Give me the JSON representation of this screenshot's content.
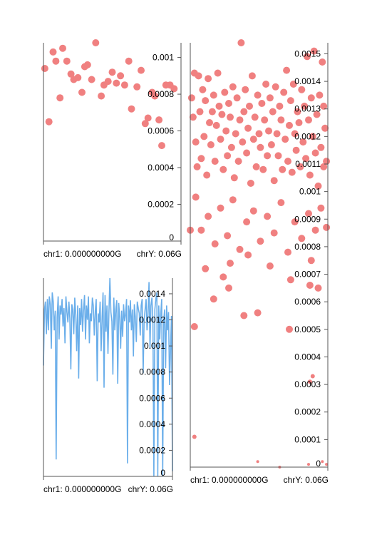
{
  "colors": {
    "points": "#f08080",
    "line": "#6aaeea",
    "axis": "#555555"
  },
  "chart_data": [
    {
      "type": "scatter",
      "xlabel_left": "chr1: 0.000000000G",
      "xlabel_right": "chrY: 0.06G",
      "xlim": [
        0,
        1
      ],
      "ylim": [
        0,
        0.00108
      ],
      "yticks": [
        0,
        0.0002,
        0.0004,
        0.0006,
        0.0008,
        0.001
      ],
      "ytick_labels": [
        "0",
        "0.0002",
        "0.0004",
        "0.0006",
        "0.0008",
        "0.001"
      ],
      "grid": false,
      "points": [
        [
          0.01,
          0.00094
        ],
        [
          0.04,
          0.00065
        ],
        [
          0.07,
          0.00103
        ],
        [
          0.09,
          0.00098
        ],
        [
          0.12,
          0.00078
        ],
        [
          0.14,
          0.00105
        ],
        [
          0.17,
          0.00098
        ],
        [
          0.2,
          0.00091
        ],
        [
          0.22,
          0.00088
        ],
        [
          0.25,
          0.00089
        ],
        [
          0.28,
          0.00081
        ],
        [
          0.3,
          0.00095
        ],
        [
          0.32,
          0.00096
        ],
        [
          0.35,
          0.00088
        ],
        [
          0.38,
          0.00108
        ],
        [
          0.42,
          0.00079
        ],
        [
          0.44,
          0.00085
        ],
        [
          0.47,
          0.00087
        ],
        [
          0.5,
          0.00092
        ],
        [
          0.53,
          0.00086
        ],
        [
          0.56,
          0.0009
        ],
        [
          0.59,
          0.00085
        ],
        [
          0.62,
          0.00098
        ],
        [
          0.64,
          0.00072
        ],
        [
          0.68,
          0.00084
        ],
        [
          0.71,
          0.00093
        ],
        [
          0.74,
          0.00064
        ],
        [
          0.76,
          0.00067
        ],
        [
          0.79,
          0.00081
        ],
        [
          0.81,
          0.00079
        ],
        [
          0.84,
          0.00066
        ],
        [
          0.86,
          0.00052
        ],
        [
          0.89,
          0.00085
        ],
        [
          0.92,
          0.00085
        ],
        [
          0.95,
          0.00083
        ]
      ]
    },
    {
      "type": "line",
      "xlabel_left": "chr1: 0.000000000G",
      "xlabel_right": "chrY: 0.06G",
      "xlim": [
        0,
        1
      ],
      "ylim": [
        0,
        0.00152
      ],
      "yticks": [
        0,
        0.0002,
        0.0004,
        0.0006,
        0.0008,
        0.001,
        0.0012,
        0.0014
      ],
      "ytick_labels": [
        "0",
        "0.0002",
        "0.0004",
        "0.0006",
        "0.0008",
        "0.001",
        "0.0012",
        "0.0014"
      ],
      "grid": false,
      "values": [
        0.00085,
        0.00128,
        0.00134,
        0.00109,
        0.00136,
        0.00112,
        0.00138,
        0.00132,
        0.00098,
        0.00141,
        0.00134,
        0.00112,
        0.00127,
        0.00013,
        0.00122,
        0.00138,
        0.00105,
        0.00131,
        0.00124,
        0.00136,
        0.00115,
        0.00129,
        0.00102,
        0.00138,
        0.00126,
        0.00118,
        0.00134,
        0.00121,
        0.00082,
        0.00132,
        0.00128,
        0.00109,
        0.00137,
        0.00124,
        0.00096,
        0.00131,
        0.00075,
        0.00129,
        0.00116,
        0.00136,
        0.00111,
        0.00127,
        0.00139,
        0.00105,
        0.00131,
        0.0012,
        0.00138,
        0.00102,
        0.00125,
        0.00119,
        0.00137,
        0.00131,
        0.00108,
        0.00127,
        0.00136,
        0.00073,
        0.00125,
        0.00118,
        0.00134,
        0.00096,
        0.00122,
        0.00141,
        0.00068,
        0.00139,
        0.00111,
        0.00131,
        0.00094,
        0.00127,
        0.00152,
        0.00126,
        0.00119,
        0.00078,
        0.00137,
        0.00112,
        0.00128,
        0.00135,
        0.00071,
        0.00133,
        0.00122,
        0.00098,
        0.00127,
        0.00107,
        0.00132,
        0.00119,
        0.00124,
        0.00136,
        0.0001,
        0.00131,
        0.00118,
        0.00135,
        0.00112,
        0.00128,
        0.00092,
        0.00132,
        0.00122,
        0.00103,
        0.00134,
        0.00129,
        0.00125,
        0.00108,
        0.00131,
        0.00136,
        0.00079,
        0.00119,
        0.00128,
        0.00136,
        0.00112,
        0.00124,
        0.00149,
        0.00098,
        0.00131,
        0.00137,
        0.00118,
        0.0,
        0.00128,
        0.00136,
        0.00141,
        0.0,
        0.00131,
        0.00105,
        0.00124,
        0.00136,
        0.0,
        0.00119,
        0.00128,
        0.00083,
        0.00131,
        0.00112,
        0.00126,
        0.0007,
        0.00098,
        0.00123,
        4e-05
      ]
    },
    {
      "type": "scatter",
      "xlabel_left": "chr1: 0.000000000G",
      "xlabel_right": "chrY: 0.06G",
      "xlim": [
        0,
        1
      ],
      "ylim": [
        0,
        0.00154
      ],
      "yticks": [
        0,
        0.0001,
        0.0002,
        0.0003,
        0.0004,
        0.0005,
        0.0006,
        0.0007,
        0.0008,
        0.0009,
        0.001,
        0.0011,
        0.0012,
        0.0013,
        0.0014,
        0.0015
      ],
      "ytick_labels": [
        "0",
        "0.0001",
        "0.0002",
        "0.0003",
        "0.0004",
        "0.0005",
        "0.0006",
        "0.0007",
        "0.0008",
        "0.0009",
        "0.001",
        "0.0011",
        "0.0012",
        "0.0013",
        "0.0014",
        "0.0015"
      ],
      "grid": false,
      "points": [
        [
          0.01,
          0.00134
        ],
        [
          0.02,
          0.00127
        ],
        [
          0.03,
          0.00143
        ],
        [
          0.04,
          0.00118
        ],
        [
          0.05,
          0.00109
        ],
        [
          0.06,
          0.00142
        ],
        [
          0.07,
          0.00129
        ],
        [
          0.08,
          0.00112
        ],
        [
          0.09,
          0.00137
        ],
        [
          0.1,
          0.0012
        ],
        [
          0.11,
          0.00133
        ],
        [
          0.12,
          0.00106
        ],
        [
          0.13,
          0.00141
        ],
        [
          0.14,
          0.00125
        ],
        [
          0.15,
          0.00117
        ],
        [
          0.16,
          0.00129
        ],
        [
          0.17,
          0.00135
        ],
        [
          0.18,
          0.00111
        ],
        [
          0.19,
          0.00124
        ],
        [
          0.2,
          0.00143
        ],
        [
          0.21,
          0.00131
        ],
        [
          0.22,
          0.00119
        ],
        [
          0.23,
          0.00128
        ],
        [
          0.24,
          0.00108
        ],
        [
          0.25,
          0.00136
        ],
        [
          0.26,
          0.00122
        ],
        [
          0.27,
          0.00113
        ],
        [
          0.28,
          0.00132
        ],
        [
          0.29,
          0.00127
        ],
        [
          0.3,
          0.00116
        ],
        [
          0.31,
          0.00138
        ],
        [
          0.32,
          0.00105
        ],
        [
          0.33,
          0.00121
        ],
        [
          0.34,
          0.00134
        ],
        [
          0.35,
          0.00111
        ],
        [
          0.36,
          0.00126
        ],
        [
          0.37,
          0.00154
        ],
        [
          0.38,
          0.00118
        ],
        [
          0.39,
          0.00129
        ],
        [
          0.4,
          0.00137
        ],
        [
          0.41,
          0.00114
        ],
        [
          0.42,
          0.00123
        ],
        [
          0.43,
          0.00131
        ],
        [
          0.44,
          0.00103
        ],
        [
          0.45,
          0.00142
        ],
        [
          0.46,
          0.00119
        ],
        [
          0.47,
          0.00127
        ],
        [
          0.48,
          0.00109
        ],
        [
          0.49,
          0.00135
        ],
        [
          0.5,
          0.00121
        ],
        [
          0.51,
          0.00116
        ],
        [
          0.52,
          0.00132
        ],
        [
          0.53,
          0.00108
        ],
        [
          0.54,
          0.00126
        ],
        [
          0.55,
          0.00139
        ],
        [
          0.56,
          0.00113
        ],
        [
          0.57,
          0.00122
        ],
        [
          0.58,
          0.00134
        ],
        [
          0.59,
          0.00117
        ],
        [
          0.6,
          0.00129
        ],
        [
          0.61,
          0.00104
        ],
        [
          0.62,
          0.00138
        ],
        [
          0.63,
          0.00121
        ],
        [
          0.64,
          0.00113
        ],
        [
          0.65,
          0.00131
        ],
        [
          0.66,
          0.00126
        ],
        [
          0.67,
          0.00108
        ],
        [
          0.68,
          0.00136
        ],
        [
          0.69,
          0.00119
        ],
        [
          0.7,
          0.00144
        ],
        [
          0.71,
          0.00111
        ],
        [
          0.72,
          0.00124
        ],
        [
          0.73,
          0.00133
        ],
        [
          0.74,
          0.00107
        ],
        [
          0.75,
          0.00139
        ],
        [
          0.76,
          0.00121
        ],
        [
          0.77,
          0.00115
        ],
        [
          0.78,
          0.00129
        ],
        [
          0.79,
          0.00125
        ],
        [
          0.8,
          0.00109
        ],
        [
          0.81,
          0.00137
        ],
        [
          0.82,
          0.00118
        ],
        [
          0.83,
          0.00131
        ],
        [
          0.84,
          0.00112
        ],
        [
          0.85,
          0.00149
        ],
        [
          0.86,
          0.00126
        ],
        [
          0.87,
          0.00106
        ],
        [
          0.88,
          0.00134
        ],
        [
          0.89,
          0.0012
        ],
        [
          0.9,
          0.00151
        ],
        [
          0.91,
          0.00114
        ],
        [
          0.92,
          0.00128
        ],
        [
          0.93,
          0.00102
        ],
        [
          0.94,
          0.00135
        ],
        [
          0.95,
          0.00116
        ],
        [
          0.96,
          0.00147
        ],
        [
          0.97,
          0.00109
        ],
        [
          0.98,
          0.00123
        ],
        [
          0.99,
          0.00111
        ],
        [
          0.97,
          0.00131
        ],
        [
          0.04,
          0.00098
        ],
        [
          0.08,
          0.00086
        ],
        [
          0.13,
          0.00091
        ],
        [
          0.18,
          0.00081
        ],
        [
          0.22,
          0.00094
        ],
        [
          0.27,
          0.00084
        ],
        [
          0.31,
          0.00097
        ],
        [
          0.36,
          0.00079
        ],
        [
          0.41,
          0.00089
        ],
        [
          0.46,
          0.00093
        ],
        [
          0.51,
          0.00082
        ],
        [
          0.56,
          0.00091
        ],
        [
          0.61,
          0.00085
        ],
        [
          0.66,
          0.00096
        ],
        [
          0.71,
          0.00078
        ],
        [
          0.76,
          0.00089
        ],
        [
          0.81,
          0.00083
        ],
        [
          0.86,
          0.00092
        ],
        [
          0.91,
          0.00086
        ],
        [
          0.95,
          0.00094
        ],
        [
          0.99,
          0.00087
        ],
        [
          0.0,
          0.00086
        ],
        [
          0.11,
          0.00072
        ],
        [
          0.24,
          0.00069
        ],
        [
          0.29,
          0.00074
        ],
        [
          0.42,
          0.00077
        ],
        [
          0.58,
          0.00073
        ],
        [
          0.73,
          0.00068
        ],
        [
          0.88,
          0.00075
        ],
        [
          0.93,
          0.00065
        ],
        [
          0.03,
          0.00051
        ],
        [
          0.17,
          0.00061
        ],
        [
          0.28,
          0.00065
        ],
        [
          0.39,
          0.00055
        ],
        [
          0.49,
          0.00056
        ],
        [
          0.72,
          0.0005
        ],
        [
          0.87,
          0.00066
        ],
        [
          0.03,
          0.00011
        ],
        [
          0.49,
          2e-05
        ],
        [
          0.87,
          0.00031
        ],
        [
          0.89,
          0.00033
        ],
        [
          0.86,
          1e-05
        ],
        [
          0.96,
          2e-05
        ],
        [
          0.99,
          1e-05
        ],
        [
          0.65,
          0.0
        ]
      ]
    }
  ]
}
